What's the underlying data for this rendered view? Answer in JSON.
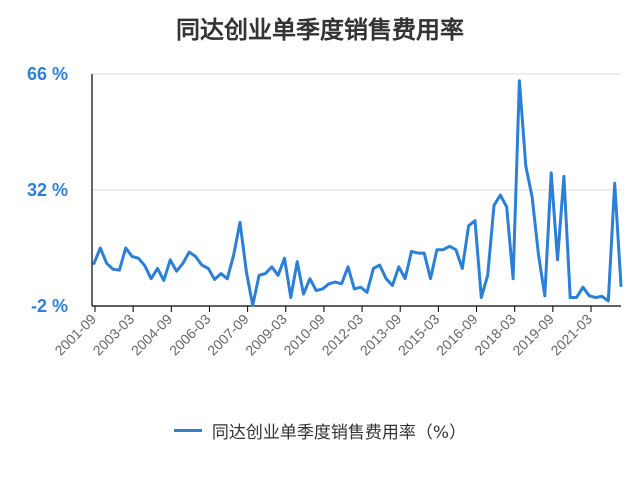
{
  "chart_data": {
    "type": "line",
    "title": "同达创业单季度销售费用率",
    "xlabel": "",
    "ylabel": "",
    "ylim": [
      -2,
      66
    ],
    "yticks": [
      "66 %",
      "32 %",
      "-2 %"
    ],
    "ytick_values": [
      66,
      32,
      -2
    ],
    "x_tick_labels": [
      "2001-09",
      "2003-03",
      "2004-09",
      "2006-03",
      "2007-09",
      "2009-03",
      "2010-09",
      "2012-03",
      "2013-09",
      "2015-03",
      "2016-09",
      "2018-03",
      "2019-09",
      "2021-03"
    ],
    "legend": "bottom-center",
    "grid": true,
    "series": [
      {
        "name": "同达创业单季度销售费用率（%）",
        "color": "#2b7fd6",
        "values": [
          10.5,
          15.0,
          10.5,
          8.8,
          8.5,
          15.0,
          12.5,
          12.0,
          9.8,
          6.0,
          9.0,
          5.5,
          11.5,
          8.2,
          10.5,
          13.8,
          12.5,
          10.0,
          9.0,
          5.8,
          7.5,
          6.0,
          13.0,
          22.5,
          8.0,
          -1.8,
          7.0,
          7.5,
          9.5,
          7.0,
          12.0,
          0.5,
          11.0,
          1.5,
          6.0,
          2.5,
          3.0,
          4.5,
          5.0,
          4.5,
          9.5,
          3.0,
          3.5,
          2.0,
          9.0,
          10.0,
          6.0,
          4.0,
          9.5,
          6.0,
          14.0,
          13.5,
          13.5,
          6.0,
          14.5,
          14.5,
          15.5,
          14.5,
          9.0,
          21.5,
          23.0,
          0.5,
          7.0,
          27.5,
          30.5,
          27.0,
          6.0,
          64.0,
          39.0,
          30.0,
          13.0,
          1.0,
          37.0,
          11.5,
          36.0,
          0.5,
          0.5,
          3.5,
          1.0,
          0.5,
          0.8,
          -0.5,
          34.0,
          4.0
        ]
      }
    ]
  }
}
